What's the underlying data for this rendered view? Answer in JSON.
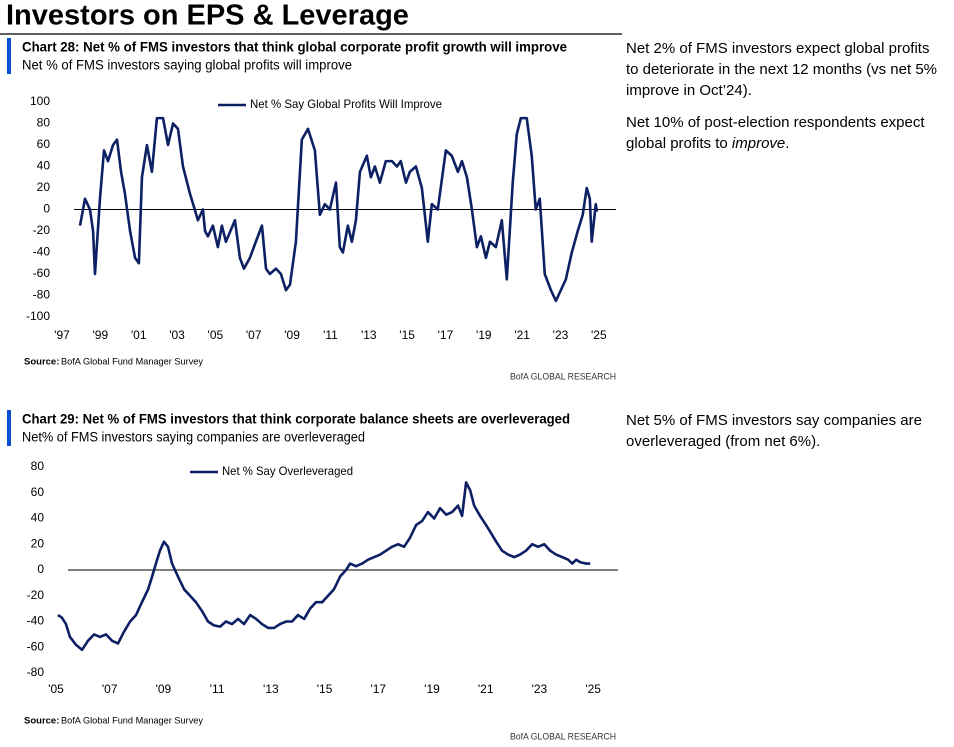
{
  "header": {
    "title": "Investors on EPS & Leverage"
  },
  "chart_data": [
    {
      "type": "line",
      "title": "Chart 28: Net % of FMS investors that think global corporate profit growth will improve",
      "subtitle": "Net % of FMS investors saying global profits will improve",
      "x": [
        1997.94,
        1998.2,
        1998.46,
        1998.62,
        1998.72,
        1998.98,
        1999.19,
        1999.4,
        1999.66,
        1999.87,
        2000.08,
        2000.28,
        2000.55,
        2000.81,
        2001.01,
        2001.17,
        2001.43,
        2001.69,
        2001.95,
        2002.27,
        2002.53,
        2002.79,
        2003.05,
        2003.31,
        2003.67,
        2004.09,
        2004.35,
        2004.46,
        2004.61,
        2004.87,
        2005.13,
        2005.34,
        2005.55,
        2006.02,
        2006.28,
        2006.49,
        2006.8,
        2007.11,
        2007.43,
        2007.64,
        2007.84,
        2008.16,
        2008.42,
        2008.68,
        2008.89,
        2009.2,
        2009.51,
        2009.83,
        2010.19,
        2010.45,
        2010.71,
        2010.97,
        2011.29,
        2011.49,
        2011.65,
        2011.91,
        2012.12,
        2012.33,
        2012.54,
        2012.9,
        2013.11,
        2013.32,
        2013.58,
        2013.89,
        2014.21,
        2014.47,
        2014.67,
        2014.94,
        2015.14,
        2015.46,
        2015.77,
        2016.08,
        2016.29,
        2016.6,
        2017.02,
        2017.33,
        2017.65,
        2017.86,
        2018.12,
        2018.38,
        2018.64,
        2018.85,
        2019.11,
        2019.32,
        2019.63,
        2019.94,
        2020.2,
        2020.51,
        2020.72,
        2020.93,
        2021.24,
        2021.5,
        2021.71,
        2021.92,
        2022.18,
        2022.5,
        2022.76,
        2023.02,
        2023.28,
        2023.59,
        2023.9,
        2024.16,
        2024.37,
        2024.53,
        2024.63,
        2024.84,
        2024.9
      ],
      "series": [
        {
          "name": "Net % Say Global Profits Will Improve",
          "color": "#0c2063",
          "values": [
            -15,
            10,
            0,
            -20,
            -60,
            10,
            55,
            45,
            60,
            65,
            35,
            15,
            -20,
            -45,
            -50,
            30,
            60,
            35,
            85,
            85,
            60,
            80,
            75,
            40,
            15,
            -10,
            0,
            -20,
            -25,
            -15,
            -35,
            -15,
            -30,
            -10,
            -45,
            -55,
            -45,
            -30,
            -15,
            -55,
            -60,
            -55,
            -60,
            -75,
            -70,
            -30,
            65,
            75,
            55,
            -5,
            5,
            0,
            25,
            -35,
            -40,
            -15,
            -30,
            -10,
            35,
            50,
            30,
            40,
            25,
            45,
            45,
            40,
            45,
            25,
            35,
            40,
            20,
            -30,
            5,
            0,
            55,
            50,
            35,
            45,
            30,
            0,
            -35,
            -25,
            -45,
            -30,
            -35,
            -10,
            -65,
            25,
            70,
            85,
            85,
            50,
            0,
            10,
            -60,
            -75,
            -85,
            -75,
            -65,
            -40,
            -20,
            -5,
            20,
            10,
            -30,
            5,
            -2
          ]
        }
      ],
      "xlim": [
        1997,
        2026
      ],
      "xticks": [
        {
          "value": 1997,
          "label": "'97"
        },
        {
          "value": 1999,
          "label": "'99"
        },
        {
          "value": 2001,
          "label": "'01"
        },
        {
          "value": 2003,
          "label": "'03"
        },
        {
          "value": 2005,
          "label": "'05"
        },
        {
          "value": 2007,
          "label": "'07"
        },
        {
          "value": 2009,
          "label": "'09"
        },
        {
          "value": 2011,
          "label": "'11"
        },
        {
          "value": 2013,
          "label": "'13"
        },
        {
          "value": 2015,
          "label": "'15"
        },
        {
          "value": 2017,
          "label": "'17"
        },
        {
          "value": 2019,
          "label": "'19"
        },
        {
          "value": 2021,
          "label": "'21"
        },
        {
          "value": 2023,
          "label": "'23"
        },
        {
          "value": 2025,
          "label": "'25"
        }
      ],
      "ylim": [
        -100,
        100
      ],
      "yticks": [
        -100,
        -80,
        -60,
        -40,
        -20,
        0,
        20,
        40,
        60,
        80,
        100
      ],
      "legend": "top",
      "source_label": "Source:",
      "source": "BofA Global Fund Manager Survey",
      "brand": "BofA GLOBAL RESEARCH",
      "commentary": [
        [
          "Net 2% of FMS investors expect global profits to deteriorate in the next 12 months (vs net 5% improve in Oct’24)."
        ],
        [
          "Net 10% of post-election respondents expect global profits to ",
          "improve",
          "."
        ]
      ]
    },
    {
      "type": "line",
      "title": "Chart 29: Net % of FMS investors that think corporate balance sheets are overleveraged",
      "subtitle": "Net% of FMS investors saying companies are overleveraged",
      "x": [
        2005.07,
        2005.22,
        2005.37,
        2005.52,
        2005.74,
        2005.97,
        2006.19,
        2006.42,
        2006.64,
        2006.86,
        2007.09,
        2007.31,
        2007.53,
        2007.76,
        2007.98,
        2008.2,
        2008.43,
        2008.58,
        2008.72,
        2008.87,
        2009.02,
        2009.17,
        2009.32,
        2009.54,
        2009.77,
        2009.99,
        2010.21,
        2010.44,
        2010.66,
        2010.88,
        2011.11,
        2011.33,
        2011.55,
        2011.78,
        2012.0,
        2012.23,
        2012.45,
        2012.67,
        2012.9,
        2013.12,
        2013.34,
        2013.57,
        2013.79,
        2014.01,
        2014.24,
        2014.46,
        2014.68,
        2014.91,
        2015.13,
        2015.35,
        2015.58,
        2015.8,
        2015.95,
        2016.17,
        2016.4,
        2016.62,
        2016.84,
        2017.07,
        2017.29,
        2017.51,
        2017.74,
        2017.96,
        2018.18,
        2018.41,
        2018.63,
        2018.85,
        2019.08,
        2019.3,
        2019.53,
        2019.75,
        2019.97,
        2020.12,
        2020.27,
        2020.42,
        2020.57,
        2020.79,
        2021.01,
        2021.16,
        2021.39,
        2021.61,
        2021.83,
        2022.06,
        2022.28,
        2022.5,
        2022.73,
        2022.95,
        2023.18,
        2023.4,
        2023.62,
        2023.85,
        2024.07,
        2024.22,
        2024.37,
        2024.52,
        2024.74,
        2024.89
      ],
      "series": [
        {
          "name": "Net % Say Overleveraged",
          "color": "#0c2063",
          "values": [
            -35,
            -37,
            -42,
            -52,
            -58,
            -62,
            -55,
            -50,
            -52,
            -50,
            -55,
            -57,
            -48,
            -40,
            -35,
            -25,
            -15,
            -5,
            5,
            15,
            22,
            18,
            5,
            -5,
            -15,
            -20,
            -25,
            -32,
            -40,
            -43,
            -44,
            -40,
            -42,
            -38,
            -42,
            -35,
            -38,
            -42,
            -45,
            -45,
            -42,
            -40,
            -40,
            -35,
            -38,
            -30,
            -25,
            -25,
            -20,
            -15,
            -5,
            0,
            5,
            3,
            5,
            8,
            10,
            12,
            15,
            18,
            20,
            18,
            25,
            35,
            38,
            45,
            40,
            48,
            43,
            45,
            50,
            42,
            68,
            62,
            50,
            42,
            35,
            30,
            22,
            15,
            12,
            10,
            12,
            15,
            20,
            18,
            20,
            15,
            12,
            10,
            8,
            5,
            8,
            6,
            5,
            5
          ]
        }
      ],
      "xlim": [
        2005,
        2026
      ],
      "xticks": [
        {
          "value": 2005,
          "label": "'05"
        },
        {
          "value": 2007,
          "label": "'07"
        },
        {
          "value": 2009,
          "label": "'09"
        },
        {
          "value": 2011,
          "label": "'11"
        },
        {
          "value": 2013,
          "label": "'13"
        },
        {
          "value": 2015,
          "label": "'15"
        },
        {
          "value": 2017,
          "label": "'17"
        },
        {
          "value": 2019,
          "label": "'19"
        },
        {
          "value": 2021,
          "label": "'21"
        },
        {
          "value": 2023,
          "label": "'23"
        },
        {
          "value": 2025,
          "label": "'25"
        }
      ],
      "ylim": [
        -80,
        80
      ],
      "yticks": [
        -80,
        -60,
        -40,
        -20,
        0,
        20,
        40,
        60,
        80
      ],
      "legend": "top",
      "source_label": "Source:",
      "source": "BofA Global Fund Manager Survey",
      "brand": "BofA GLOBAL RESEARCH",
      "commentary": [
        [
          "Net 5% of FMS investors say companies are overleveraged (from net 6%)."
        ]
      ]
    }
  ]
}
